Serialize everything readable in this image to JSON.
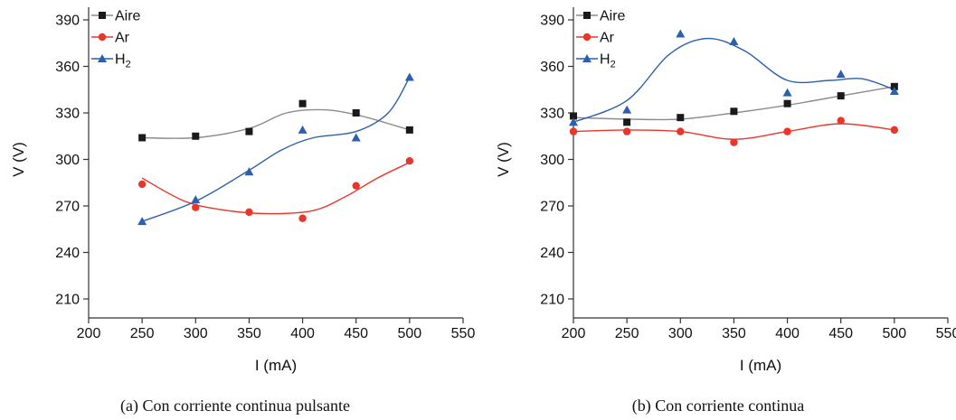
{
  "chart_data": [
    {
      "type": "scatter",
      "caption": "(a) Con corriente continua pulsante",
      "xlabel": "I (mA)",
      "ylabel": "V (V)",
      "xlim": [
        200,
        550
      ],
      "ylim": [
        200,
        400
      ],
      "xticks": [
        200,
        250,
        300,
        350,
        400,
        450,
        500,
        550
      ],
      "yticks": [
        210,
        240,
        270,
        300,
        330,
        360,
        390
      ],
      "legend_position": "top-left",
      "series": [
        {
          "name": "Aire",
          "marker": "square",
          "marker_color": "#1a1a1a",
          "line_color": "#8c8c8c",
          "x": [
            250,
            300,
            350,
            400,
            450,
            500
          ],
          "y": [
            314,
            315,
            318,
            336,
            330,
            319
          ],
          "fit_x": [
            250,
            300,
            350,
            385,
            420,
            455,
            500
          ],
          "fit_y": [
            314,
            314,
            320,
            330,
            332,
            328,
            319
          ]
        },
        {
          "name": "Ar",
          "marker": "circle",
          "marker_color": "#e8362b",
          "line_color": "#e8362b",
          "x": [
            250,
            300,
            350,
            400,
            450,
            500
          ],
          "y": [
            284,
            269,
            266,
            262,
            283,
            299
          ],
          "fit_x": [
            250,
            290,
            330,
            370,
            410,
            440,
            470,
            500
          ],
          "fit_y": [
            288,
            273,
            267,
            265,
            267,
            276,
            288,
            298
          ]
        },
        {
          "name": "H",
          "name_sub": "2",
          "marker": "triangle",
          "marker_color": "#2c5fae",
          "line_color": "#2c5fae",
          "x": [
            250,
            300,
            350,
            400,
            450,
            500
          ],
          "y": [
            260,
            274,
            292,
            319,
            314,
            353
          ],
          "fit_x": [
            250,
            300,
            350,
            380,
            410,
            450,
            480,
            500
          ],
          "fit_y": [
            260,
            273,
            293,
            306,
            314,
            318,
            330,
            353
          ]
        }
      ]
    },
    {
      "type": "scatter",
      "caption": "(b) Con corriente continua",
      "xlabel": "I (mA)",
      "ylabel": "V (V)",
      "xlim": [
        200,
        550
      ],
      "ylim": [
        200,
        400
      ],
      "xticks": [
        200,
        250,
        300,
        350,
        400,
        450,
        500,
        550
      ],
      "yticks": [
        210,
        240,
        270,
        300,
        330,
        360,
        390
      ],
      "legend_position": "top-left",
      "series": [
        {
          "name": "Aire",
          "marker": "square",
          "marker_color": "#1a1a1a",
          "line_color": "#8c8c8c",
          "x": [
            200,
            250,
            300,
            350,
            400,
            450,
            500
          ],
          "y": [
            328,
            324,
            327,
            331,
            336,
            341,
            347
          ],
          "fit_x": [
            200,
            250,
            300,
            350,
            400,
            450,
            500
          ],
          "fit_y": [
            327,
            326,
            326,
            330,
            335,
            341,
            347
          ]
        },
        {
          "name": "Ar",
          "marker": "circle",
          "marker_color": "#e8362b",
          "line_color": "#e8362b",
          "x": [
            200,
            250,
            300,
            350,
            400,
            450,
            500
          ],
          "y": [
            318,
            318,
            318,
            311,
            318,
            325,
            319
          ],
          "fit_x": [
            200,
            250,
            300,
            350,
            400,
            450,
            500
          ],
          "fit_y": [
            318,
            319,
            318,
            313,
            318,
            323,
            319
          ]
        },
        {
          "name": "H",
          "name_sub": "2",
          "marker": "triangle",
          "marker_color": "#2c5fae",
          "line_color": "#2c5fae",
          "x": [
            200,
            250,
            300,
            350,
            400,
            450,
            500
          ],
          "y": [
            324,
            332,
            381,
            376,
            343,
            355,
            344
          ],
          "fit_x": [
            200,
            250,
            290,
            325,
            360,
            400,
            440,
            470,
            500
          ],
          "fit_y": [
            324,
            338,
            368,
            378,
            370,
            351,
            351,
            352,
            345
          ]
        }
      ]
    }
  ]
}
